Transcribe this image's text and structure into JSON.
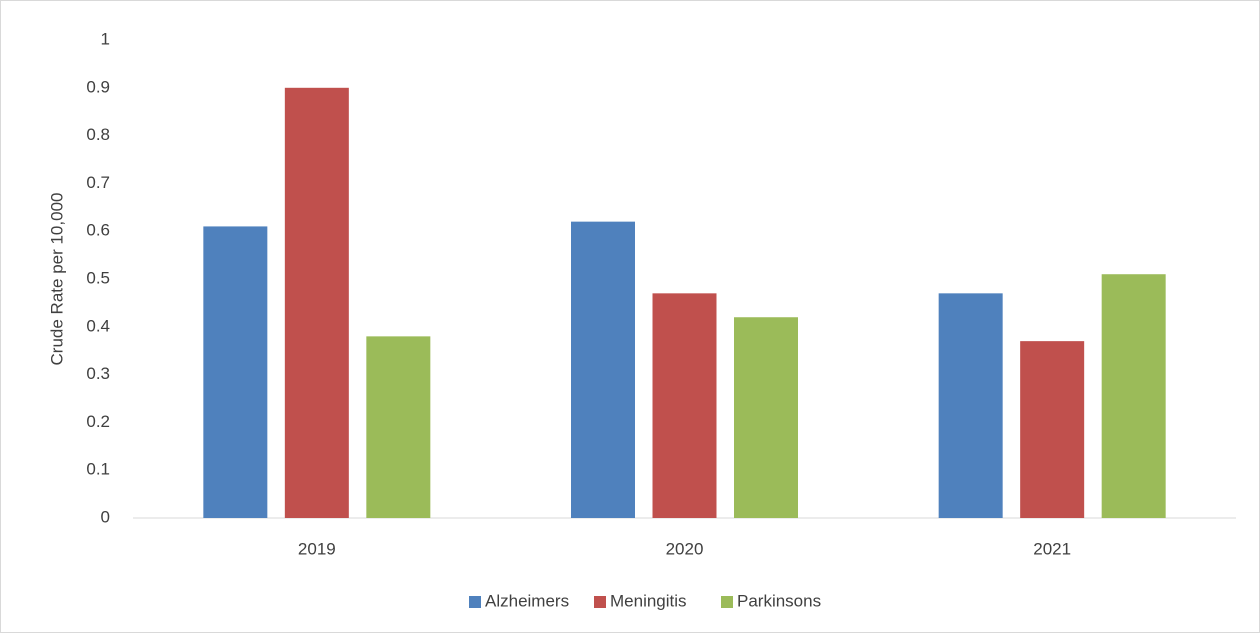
{
  "chart_data": {
    "type": "bar",
    "y_label": "Crude Rate per 10,000",
    "categories": [
      "2019",
      "2020",
      "2021"
    ],
    "series": [
      {
        "name": "Alzheimers",
        "color": "#4f81bd",
        "values": [
          0.61,
          0.62,
          0.47
        ]
      },
      {
        "name": "Meningitis",
        "color": "#c0504d",
        "values": [
          0.9,
          0.47,
          0.37
        ]
      },
      {
        "name": "Parkinsons",
        "color": "#9bbb59",
        "values": [
          0.38,
          0.42,
          0.51
        ]
      }
    ],
    "ylim": [
      0,
      1
    ],
    "yticks": [
      0,
      0.1,
      0.2,
      0.3,
      0.4,
      0.5,
      0.6,
      0.7,
      0.8,
      0.9,
      1
    ],
    "grid": false,
    "legend": "bottom"
  }
}
